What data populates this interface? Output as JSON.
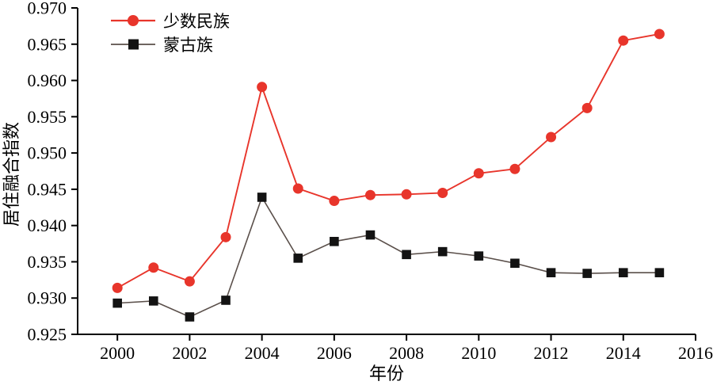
{
  "chart_data": {
    "type": "line",
    "title": "",
    "xlabel": "年份",
    "ylabel": "居住融合指数",
    "x": [
      2000,
      2001,
      2002,
      2003,
      2004,
      2005,
      2006,
      2007,
      2008,
      2009,
      2010,
      2011,
      2012,
      2013,
      2014,
      2015
    ],
    "series": [
      {
        "name": "少数民族",
        "marker": "circle",
        "color": "#e8352b",
        "marker_color": "#e8352b",
        "values": [
          0.9314,
          0.9342,
          0.9323,
          0.9384,
          0.9591,
          0.9451,
          0.9434,
          0.9442,
          0.9443,
          0.9445,
          0.9472,
          0.9478,
          0.9522,
          0.9562,
          0.9655,
          0.9664
        ]
      },
      {
        "name": "蒙古族",
        "marker": "square",
        "color": "#5a4f4a",
        "marker_color": "#131313",
        "values": [
          0.9293,
          0.9296,
          0.9274,
          0.9297,
          0.9439,
          0.9355,
          0.9378,
          0.9387,
          0.936,
          0.9364,
          0.9358,
          0.9348,
          0.9335,
          0.9334,
          0.9335,
          0.9335
        ]
      }
    ],
    "xlim": [
      1998.9,
      2016
    ],
    "ylim": [
      0.925,
      0.97
    ],
    "xticks": [
      2000,
      2002,
      2004,
      2006,
      2008,
      2010,
      2012,
      2014,
      2016
    ],
    "ytick_labels": [
      "0.925",
      "0.930",
      "0.935",
      "0.940",
      "0.945",
      "0.950",
      "0.955",
      "0.960",
      "0.965",
      "0.970"
    ],
    "grid": false,
    "legend_position": "top-left",
    "axis_color": "#000000",
    "background": "#ffffff"
  }
}
